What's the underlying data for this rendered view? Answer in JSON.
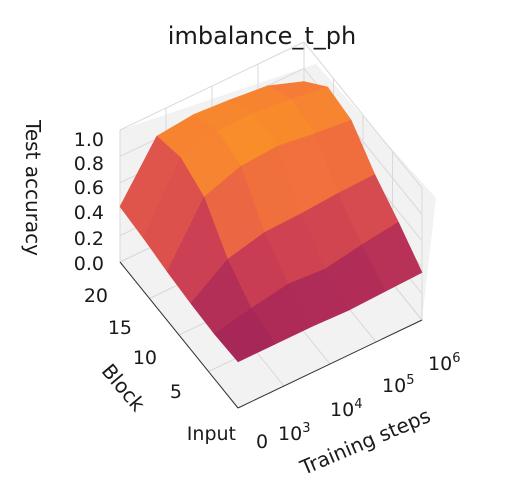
{
  "chart_data": {
    "type": "surface",
    "title": "imbalance_t_ph",
    "xlabel": "Training steps",
    "ylabel": "Block",
    "zlabel": "Test accuracy",
    "x_ticks": [
      {
        "base": "0",
        "exp": ""
      },
      {
        "base": "10",
        "exp": "3"
      },
      {
        "base": "10",
        "exp": "4"
      },
      {
        "base": "10",
        "exp": "5"
      },
      {
        "base": "10",
        "exp": "6"
      }
    ],
    "y_ticks": [
      "Input",
      "5",
      "10",
      "15",
      "20"
    ],
    "z_ticks": [
      "0.0",
      "0.2",
      "0.4",
      "0.6",
      "0.8",
      "1.0"
    ],
    "zlim": [
      0,
      1
    ],
    "colormap": "inferno-like (purple to orange)",
    "colors": [
      "#a3245a",
      "#c73b55",
      "#e2574a",
      "#f4763a",
      "#f99028"
    ],
    "series": [
      {
        "name": "",
        "values": [
          [
            0.35,
            0.34,
            0.35,
            0.37,
            0.4,
            0.42
          ],
          [
            0.35,
            0.4,
            0.55,
            0.8,
            0.88,
            0.82
          ],
          [
            0.35,
            0.45,
            0.62,
            0.9,
            0.95,
            0.85
          ],
          [
            0.34,
            0.43,
            0.63,
            0.92,
            0.95,
            0.83
          ],
          [
            0.35,
            0.48,
            0.65,
            0.88,
            0.92,
            0.8
          ],
          [
            0.36,
            0.52,
            0.66,
            0.85,
            0.88,
            0.7
          ]
        ]
      }
    ]
  }
}
